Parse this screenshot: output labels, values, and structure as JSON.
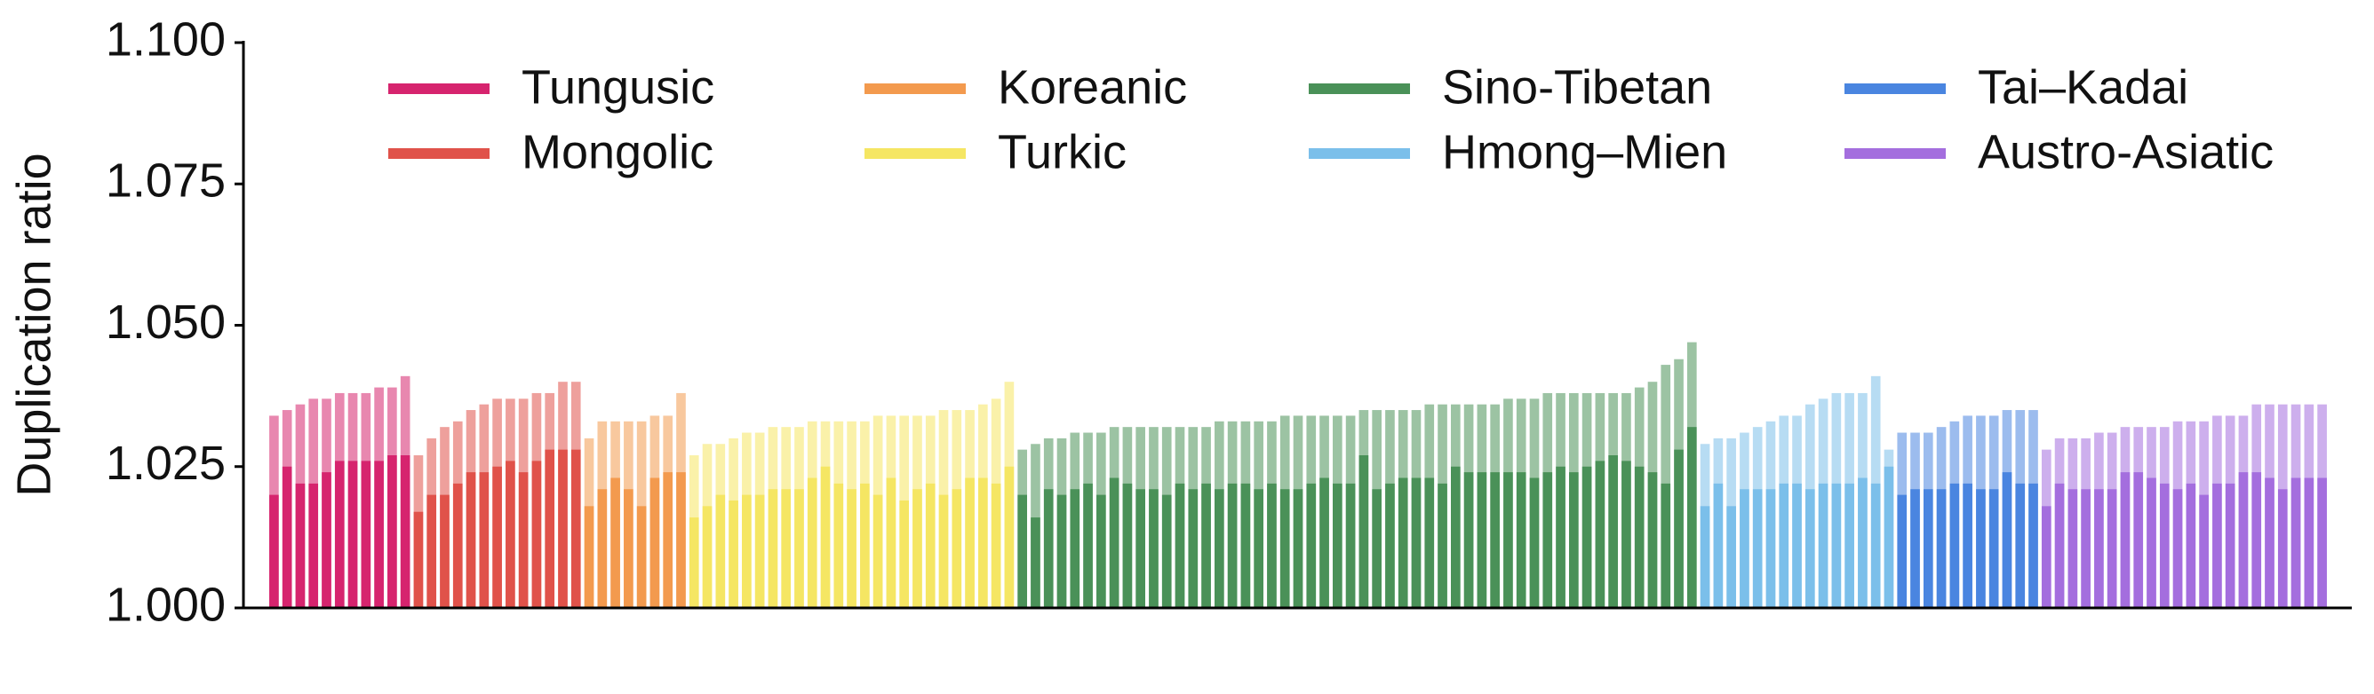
{
  "chart_data": {
    "type": "overlay-bar",
    "y_label": "Duplication ratio",
    "ylim": [
      1.0,
      1.1
    ],
    "yticks": [
      {
        "value": 1.0,
        "label": "1.000"
      },
      1.025,
      {
        "value": 1.05,
        "label": "1.050"
      },
      1.075,
      {
        "value": 1.1,
        "label": "1.100"
      }
    ],
    "light_opacity": 0.55,
    "series": [
      {
        "name": "Tungusic",
        "color": "#d6246e",
        "values": [
          1.02,
          1.025,
          1.022,
          1.022,
          1.024,
          1.026,
          1.026,
          1.026,
          1.026,
          1.027,
          1.027
        ],
        "light_values": [
          1.034,
          1.035,
          1.036,
          1.037,
          1.037,
          1.038,
          1.038,
          1.038,
          1.039,
          1.039,
          1.041
        ]
      },
      {
        "name": "Mongolic",
        "color": "#e0524a",
        "values": [
          1.017,
          1.02,
          1.02,
          1.022,
          1.024,
          1.024,
          1.025,
          1.026,
          1.024,
          1.026,
          1.028,
          1.028,
          1.028
        ],
        "light_values": [
          1.027,
          1.03,
          1.032,
          1.033,
          1.035,
          1.036,
          1.037,
          1.037,
          1.037,
          1.038,
          1.038,
          1.04,
          1.04
        ]
      },
      {
        "name": "Koreanic",
        "color": "#f39a4e",
        "values": [
          1.018,
          1.021,
          1.023,
          1.021,
          1.018,
          1.023,
          1.024,
          1.024
        ],
        "light_values": [
          1.03,
          1.033,
          1.033,
          1.033,
          1.033,
          1.034,
          1.034,
          1.038
        ]
      },
      {
        "name": "Turkic",
        "color": "#f5e663",
        "values": [
          1.016,
          1.018,
          1.02,
          1.019,
          1.02,
          1.02,
          1.021,
          1.021,
          1.021,
          1.023,
          1.025,
          1.022,
          1.021,
          1.022,
          1.02,
          1.023,
          1.019,
          1.021,
          1.022,
          1.02,
          1.021,
          1.023,
          1.023,
          1.022,
          1.025
        ],
        "light_values": [
          1.027,
          1.029,
          1.029,
          1.03,
          1.031,
          1.031,
          1.032,
          1.032,
          1.032,
          1.033,
          1.033,
          1.033,
          1.033,
          1.033,
          1.034,
          1.034,
          1.034,
          1.034,
          1.034,
          1.035,
          1.035,
          1.035,
          1.036,
          1.037,
          1.04
        ]
      },
      {
        "name": "Sino-Tibetan",
        "color": "#4a9158",
        "values": [
          1.02,
          1.016,
          1.021,
          1.02,
          1.021,
          1.022,
          1.02,
          1.023,
          1.022,
          1.021,
          1.021,
          1.02,
          1.022,
          1.021,
          1.022,
          1.021,
          1.022,
          1.022,
          1.021,
          1.022,
          1.021,
          1.021,
          1.022,
          1.023,
          1.022,
          1.022,
          1.027,
          1.021,
          1.022,
          1.023,
          1.023,
          1.023,
          1.022,
          1.025,
          1.024,
          1.024,
          1.024,
          1.024,
          1.024,
          1.023,
          1.024,
          1.025,
          1.024,
          1.025,
          1.026,
          1.027,
          1.026,
          1.025,
          1.024,
          1.022,
          1.028,
          1.032
        ],
        "light_values": [
          1.028,
          1.029,
          1.03,
          1.03,
          1.031,
          1.031,
          1.031,
          1.032,
          1.032,
          1.032,
          1.032,
          1.032,
          1.032,
          1.032,
          1.032,
          1.033,
          1.033,
          1.033,
          1.033,
          1.033,
          1.034,
          1.034,
          1.034,
          1.034,
          1.034,
          1.034,
          1.035,
          1.035,
          1.035,
          1.035,
          1.035,
          1.036,
          1.036,
          1.036,
          1.036,
          1.036,
          1.036,
          1.037,
          1.037,
          1.037,
          1.038,
          1.038,
          1.038,
          1.038,
          1.038,
          1.038,
          1.038,
          1.039,
          1.04,
          1.043,
          1.044,
          1.047
        ]
      },
      {
        "name": "Hmong–Mien",
        "color": "#7bbfea",
        "values": [
          1.018,
          1.022,
          1.018,
          1.021,
          1.021,
          1.021,
          1.022,
          1.022,
          1.021,
          1.022,
          1.022,
          1.022,
          1.023,
          1.022,
          1.025
        ],
        "light_values": [
          1.029,
          1.03,
          1.03,
          1.031,
          1.032,
          1.033,
          1.034,
          1.034,
          1.036,
          1.037,
          1.038,
          1.038,
          1.038,
          1.041,
          1.028
        ]
      },
      {
        "name": "Tai–Kadai",
        "color": "#4a85e0",
        "values": [
          1.02,
          1.021,
          1.021,
          1.021,
          1.022,
          1.022,
          1.021,
          1.021,
          1.024,
          1.022,
          1.022
        ],
        "light_values": [
          1.031,
          1.031,
          1.031,
          1.032,
          1.033,
          1.034,
          1.034,
          1.034,
          1.035,
          1.035,
          1.035
        ]
      },
      {
        "name": "Austro-Asiatic",
        "color": "#a46ede",
        "values": [
          1.018,
          1.022,
          1.021,
          1.021,
          1.021,
          1.021,
          1.024,
          1.024,
          1.023,
          1.022,
          1.021,
          1.022,
          1.02,
          1.022,
          1.022,
          1.024,
          1.024,
          1.023,
          1.021,
          1.023,
          1.023,
          1.023
        ],
        "light_values": [
          1.028,
          1.03,
          1.03,
          1.03,
          1.031,
          1.031,
          1.032,
          1.032,
          1.032,
          1.032,
          1.033,
          1.033,
          1.033,
          1.034,
          1.034,
          1.034,
          1.036,
          1.036,
          1.036,
          1.036,
          1.036,
          1.036
        ]
      }
    ]
  }
}
